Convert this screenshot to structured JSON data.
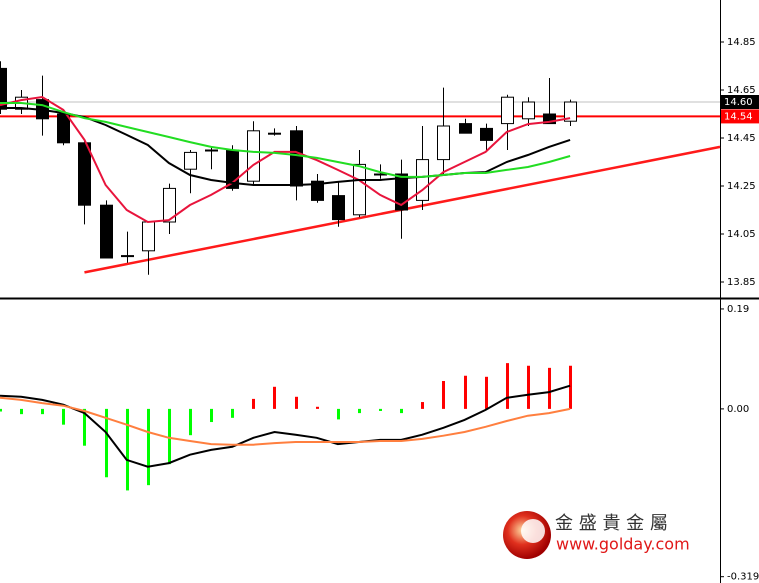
{
  "chart_data": [
    {
      "type": "candlestick",
      "x": [
        0,
        1,
        2,
        3,
        4,
        5,
        6,
        7,
        8,
        9,
        10,
        11,
        12,
        13,
        14,
        15,
        16,
        17,
        18,
        19,
        20,
        21,
        22,
        23,
        24,
        25,
        26,
        27
      ],
      "xlim": [
        0,
        34.1
      ],
      "ylim": [
        13.7875,
        15.025
      ],
      "yticks": [
        13.85,
        14.05,
        14.25,
        14.45,
        14.65,
        14.85
      ],
      "open": [
        14.74,
        14.57,
        14.61,
        14.55,
        14.43,
        14.17,
        13.96,
        13.98,
        14.1,
        14.32,
        14.4,
        14.4,
        14.27,
        14.47,
        14.48,
        14.27,
        14.21,
        14.13,
        14.3,
        14.3,
        14.19,
        14.36,
        14.51,
        14.49,
        14.51,
        14.53,
        14.55,
        14.52
      ],
      "high": [
        14.77,
        14.65,
        14.71,
        14.56,
        14.44,
        14.19,
        14.06,
        14.09,
        14.26,
        14.4,
        14.41,
        14.42,
        14.52,
        14.49,
        14.5,
        14.3,
        14.27,
        14.4,
        14.34,
        14.36,
        14.5,
        14.66,
        14.53,
        14.51,
        14.63,
        14.62,
        14.7,
        14.61
      ],
      "low": [
        14.55,
        14.55,
        14.46,
        14.42,
        14.09,
        13.95,
        13.93,
        13.88,
        14.05,
        14.22,
        14.32,
        14.23,
        14.25,
        14.46,
        14.19,
        14.18,
        14.08,
        14.12,
        14.28,
        14.03,
        14.15,
        14.3,
        14.47,
        14.4,
        14.4,
        14.5,
        14.51,
        14.5
      ],
      "close": [
        14.57,
        14.62,
        14.53,
        14.43,
        14.17,
        13.95,
        13.96,
        14.1,
        14.24,
        14.39,
        14.4,
        14.24,
        14.48,
        14.47,
        14.25,
        14.19,
        14.11,
        14.34,
        14.3,
        14.15,
        14.36,
        14.5,
        14.47,
        14.44,
        14.62,
        14.6,
        14.51,
        14.6
      ],
      "up_color": "#ffffff",
      "down_color": "#000000",
      "series": [
        {
          "color": "#e8143c",
          "values": [
            14.587,
            14.608,
            14.621,
            14.567,
            14.442,
            14.254,
            14.15,
            14.1,
            14.108,
            14.171,
            14.213,
            14.263,
            14.338,
            14.392,
            14.392,
            14.358,
            14.317,
            14.275,
            14.213,
            14.171,
            14.233,
            14.308,
            14.35,
            14.392,
            14.475,
            14.508,
            14.517,
            14.533
          ]
        },
        {
          "color": "#000000",
          "values": [
            14.575,
            14.575,
            14.567,
            14.554,
            14.537,
            14.504,
            14.463,
            14.421,
            14.346,
            14.296,
            14.275,
            14.263,
            14.254,
            14.254,
            14.254,
            14.258,
            14.267,
            14.275,
            14.275,
            14.283,
            14.288,
            14.296,
            14.304,
            14.308,
            14.35,
            14.379,
            14.413,
            14.442
          ]
        },
        {
          "color": "#22dd22",
          "values": [
            14.596,
            14.596,
            14.587,
            14.558,
            14.533,
            14.517,
            14.496,
            14.475,
            14.454,
            14.433,
            14.413,
            14.4,
            14.392,
            14.388,
            14.379,
            14.367,
            14.35,
            14.333,
            14.308,
            14.288,
            14.288,
            14.296,
            14.304,
            14.304,
            14.317,
            14.329,
            14.35,
            14.375
          ]
        }
      ],
      "hline": {
        "value": 14.54,
        "label": "14.54",
        "color": "#ff0000"
      },
      "price_label": {
        "value": 14.6,
        "label": "14.60"
      },
      "trendline": {
        "x": [
          4,
          34.1
        ],
        "y": [
          13.89,
          14.413
        ],
        "color": "#ff1a1a"
      }
    },
    {
      "type": "macd",
      "xlim": [
        0,
        34.1
      ],
      "ylim": [
        -0.331,
        0.207
      ],
      "yticks": [
        {
          "value": 0.19,
          "label": "0.19"
        },
        {
          "value": 0,
          "label": "0.00"
        },
        {
          "value": -0.319,
          "label": "-0.319"
        }
      ],
      "x": [
        0,
        1,
        2,
        3,
        4,
        5,
        6,
        7,
        8,
        9,
        10,
        11,
        12,
        13,
        14,
        15,
        16,
        17,
        18,
        19,
        20,
        21,
        22,
        23,
        24,
        25,
        26,
        27
      ],
      "histogram": [
        -0.005,
        -0.01,
        -0.01,
        -0.03,
        -0.07,
        -0.13,
        -0.155,
        -0.145,
        -0.105,
        -0.05,
        -0.025,
        -0.017,
        0.019,
        0.042,
        0.023,
        0.004,
        -0.02,
        -0.008,
        -0.004,
        -0.008,
        0.013,
        0.053,
        0.063,
        0.061,
        0.087,
        0.082,
        0.078,
        0.082
      ],
      "pos_color": "#ff0000",
      "neg_color": "#00ff00",
      "series": [
        {
          "color": "#000000",
          "values": [
            0.025,
            0.023,
            0.017,
            0.008,
            -0.008,
            -0.044,
            -0.097,
            -0.11,
            -0.103,
            -0.087,
            -0.078,
            -0.072,
            -0.055,
            -0.044,
            -0.049,
            -0.055,
            -0.067,
            -0.063,
            -0.059,
            -0.059,
            -0.049,
            -0.036,
            -0.021,
            -0.002,
            0.021,
            0.027,
            0.032,
            0.044
          ]
        },
        {
          "color": "#ff7f3f",
          "values": [
            0.021,
            0.017,
            0.011,
            0.006,
            -0.004,
            -0.017,
            -0.03,
            -0.044,
            -0.055,
            -0.061,
            -0.067,
            -0.068,
            -0.068,
            -0.065,
            -0.063,
            -0.063,
            -0.063,
            -0.063,
            -0.061,
            -0.061,
            -0.057,
            -0.051,
            -0.044,
            -0.034,
            -0.023,
            -0.013,
            -0.008,
            0
          ]
        }
      ]
    }
  ],
  "watermark": {
    "name": "金 盛 貴 金 屬",
    "url": "www.golday.com"
  }
}
